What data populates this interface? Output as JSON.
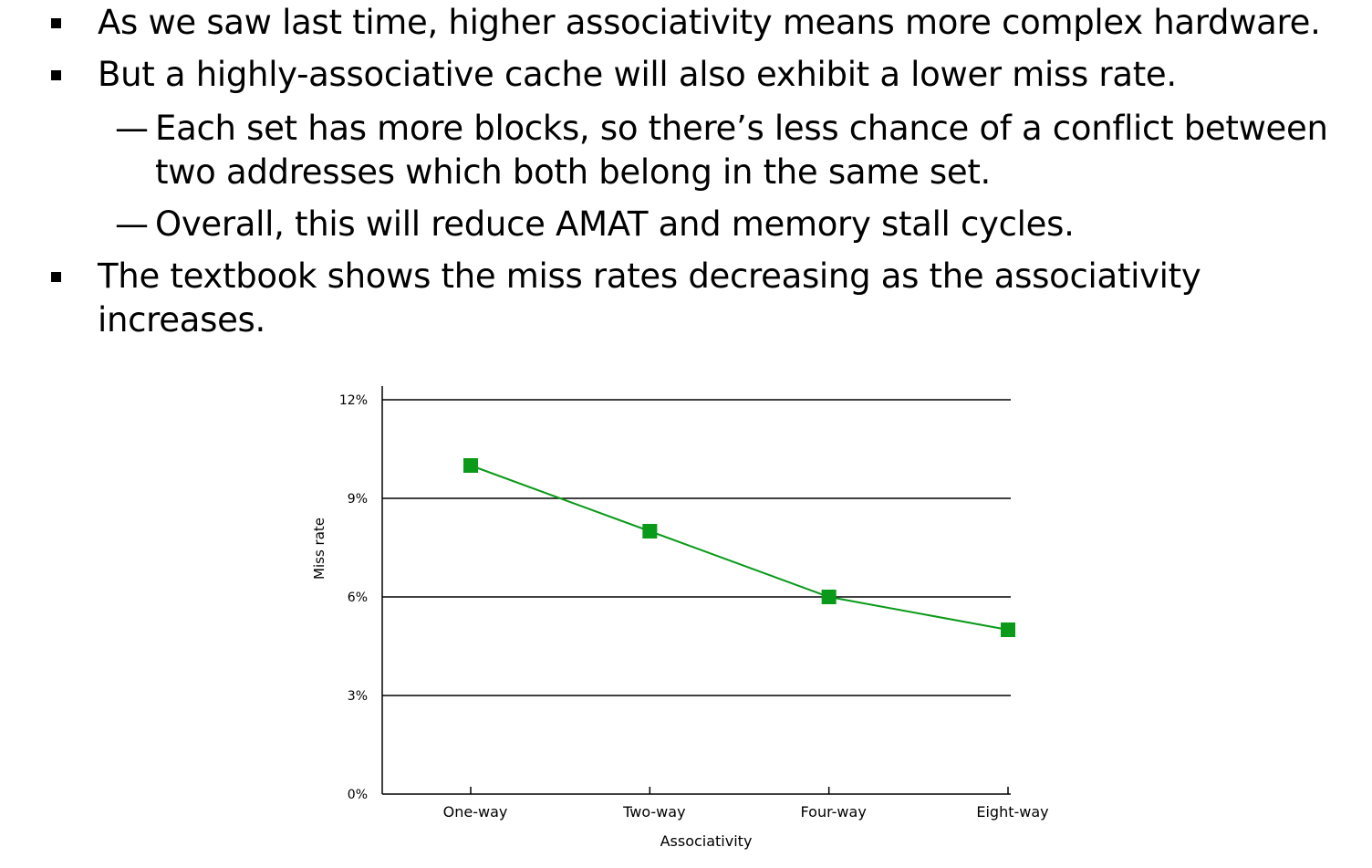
{
  "slide": {
    "bullets": [
      {
        "level": 1,
        "lines": [
          "As we saw last time, higher associativity means more complex hardware."
        ]
      },
      {
        "level": 1,
        "lines": [
          "But a highly-associative cache will also exhibit a lower miss rate."
        ]
      },
      {
        "level": 2,
        "lines": [
          "Each set has more blocks, so there’s less chance of a conflict between",
          "two addresses which both belong in the same set."
        ]
      },
      {
        "level": 2,
        "lines": [
          "Overall, this will reduce AMAT and memory stall cycles."
        ]
      },
      {
        "level": 1,
        "lines": [
          "The textbook shows the miss rates decreasing as the associativity",
          "increases."
        ]
      }
    ],
    "sub_marker": "—"
  },
  "chart_data": {
    "type": "line",
    "categories": [
      "One-way",
      "Two-way",
      "Four-way",
      "Eight-way"
    ],
    "series": [
      {
        "values": [
          10,
          8,
          6,
          5
        ],
        "color": "#0a9a1a"
      }
    ],
    "xlabel": "Associativity",
    "ylabel": "Miss rate",
    "ylim": [
      0,
      12
    ],
    "yticks": [
      0,
      3,
      6,
      9,
      12
    ],
    "ytick_labels": [
      "0%",
      "3%",
      "6%",
      "9%",
      "12%"
    ],
    "grid": true,
    "legend": "none"
  }
}
